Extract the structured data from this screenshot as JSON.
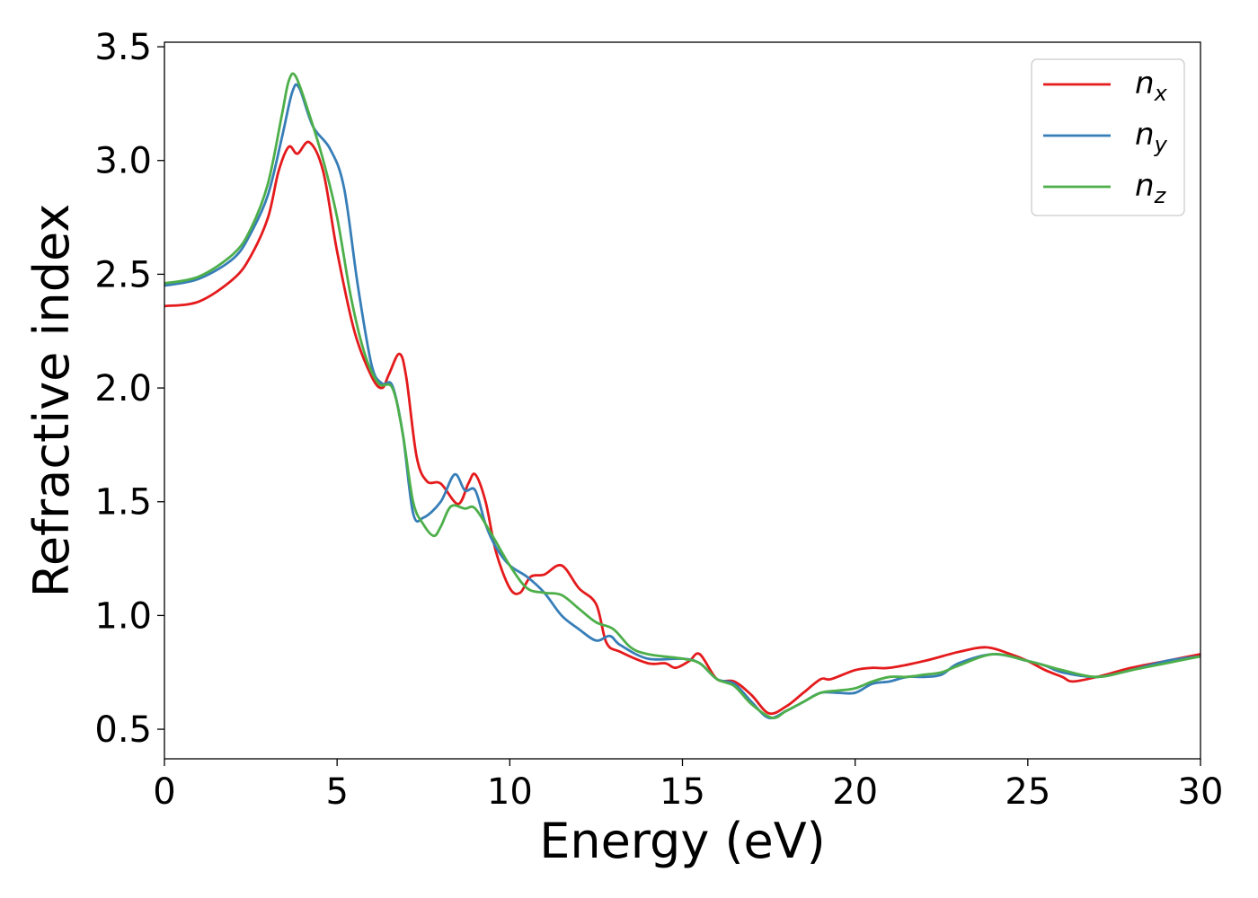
{
  "chart_data": {
    "type": "line",
    "title": "",
    "xlabel": "Energy (eV)",
    "ylabel": "Refractive index",
    "xlim": [
      0,
      30
    ],
    "ylim": [
      0.37,
      3.52
    ],
    "xticks": [
      0,
      5,
      10,
      15,
      20,
      25,
      30
    ],
    "xtick_labels": [
      "0",
      "5",
      "10",
      "15",
      "20",
      "25",
      "30"
    ],
    "yticks": [
      0.5,
      1.0,
      1.5,
      2.0,
      2.5,
      3.0,
      3.5
    ],
    "ytick_labels": [
      "0.5",
      "1.0",
      "1.5",
      "2.0",
      "2.5",
      "3.0",
      "3.5"
    ],
    "grid": false,
    "legend_position": "top-right",
    "series": [
      {
        "name": "n_x",
        "label_base": "n",
        "label_sub": "x",
        "color": "#e41a1c",
        "x": [
          0,
          1,
          2,
          2.5,
          3,
          3.3,
          3.6,
          3.85,
          4.2,
          4.6,
          5,
          5.5,
          6,
          6.3,
          6.5,
          6.8,
          7,
          7.3,
          7.6,
          8,
          8.5,
          8.8,
          9,
          9.3,
          9.6,
          10,
          10.3,
          10.6,
          11,
          11.5,
          12,
          12.5,
          12.8,
          13.2,
          14,
          14.5,
          14.8,
          15.2,
          15.5,
          16,
          16.5,
          17,
          17.5,
          18,
          18.5,
          19,
          19.3,
          20,
          20.5,
          21,
          22,
          23,
          23.8,
          24.5,
          25,
          25.5,
          26,
          26.3,
          27,
          28,
          29,
          30
        ],
        "y": [
          2.36,
          2.38,
          2.48,
          2.58,
          2.75,
          2.95,
          3.06,
          3.03,
          3.08,
          2.95,
          2.6,
          2.25,
          2.05,
          2.0,
          2.06,
          2.15,
          2.05,
          1.7,
          1.59,
          1.58,
          1.49,
          1.58,
          1.62,
          1.5,
          1.28,
          1.12,
          1.1,
          1.17,
          1.18,
          1.22,
          1.12,
          1.05,
          0.88,
          0.84,
          0.79,
          0.79,
          0.77,
          0.8,
          0.83,
          0.72,
          0.71,
          0.65,
          0.57,
          0.6,
          0.66,
          0.72,
          0.72,
          0.76,
          0.77,
          0.77,
          0.8,
          0.84,
          0.86,
          0.83,
          0.8,
          0.76,
          0.73,
          0.71,
          0.73,
          0.77,
          0.8,
          0.83
        ]
      },
      {
        "name": "n_y",
        "label_base": "n",
        "label_sub": "y",
        "color": "#377eb8",
        "x": [
          0,
          1,
          2,
          2.5,
          3,
          3.4,
          3.7,
          3.9,
          4.3,
          4.8,
          5.2,
          5.6,
          6,
          6.3,
          6.6,
          6.9,
          7.2,
          7.5,
          8,
          8.4,
          8.7,
          9,
          9.3,
          9.6,
          10,
          10.5,
          11,
          11.5,
          12,
          12.5,
          12.9,
          13.2,
          14,
          15,
          15.5,
          16,
          16.5,
          17,
          17.5,
          18,
          18.5,
          19,
          19.5,
          20,
          20.5,
          21,
          21.5,
          22,
          22.5,
          23,
          24,
          25,
          25.5,
          26,
          27,
          28,
          29,
          30
        ],
        "y": [
          2.45,
          2.48,
          2.57,
          2.68,
          2.85,
          3.1,
          3.3,
          3.32,
          3.15,
          3.05,
          2.88,
          2.45,
          2.1,
          2.02,
          2.01,
          1.8,
          1.45,
          1.43,
          1.5,
          1.62,
          1.55,
          1.55,
          1.4,
          1.3,
          1.22,
          1.17,
          1.1,
          1.0,
          0.94,
          0.89,
          0.91,
          0.87,
          0.81,
          0.81,
          0.79,
          0.72,
          0.7,
          0.62,
          0.55,
          0.58,
          0.62,
          0.66,
          0.66,
          0.66,
          0.7,
          0.71,
          0.73,
          0.73,
          0.74,
          0.79,
          0.83,
          0.8,
          0.78,
          0.75,
          0.73,
          0.76,
          0.8,
          0.82
        ]
      },
      {
        "name": "n_z",
        "label_base": "n",
        "label_sub": "z",
        "color": "#4daf4a",
        "x": [
          0,
          1,
          2,
          2.5,
          3,
          3.4,
          3.6,
          3.8,
          4.2,
          4.6,
          5,
          5.4,
          5.8,
          6.2,
          6.6,
          6.9,
          7.2,
          7.5,
          7.8,
          8,
          8.3,
          8.7,
          9,
          9.5,
          10,
          10.5,
          11,
          11.5,
          12,
          12.5,
          13,
          13.5,
          14,
          15,
          15.5,
          16,
          16.5,
          17,
          17.6,
          18,
          18.5,
          19,
          19.5,
          20,
          20.5,
          21,
          21.5,
          22,
          22.5,
          23,
          24,
          25,
          25.5,
          26,
          27,
          28,
          29,
          30
        ],
        "y": [
          2.46,
          2.49,
          2.59,
          2.7,
          2.9,
          3.2,
          3.35,
          3.37,
          3.2,
          3.0,
          2.75,
          2.4,
          2.15,
          2.02,
          2.0,
          1.8,
          1.5,
          1.4,
          1.35,
          1.39,
          1.48,
          1.47,
          1.47,
          1.35,
          1.22,
          1.12,
          1.1,
          1.09,
          1.03,
          0.97,
          0.94,
          0.86,
          0.83,
          0.81,
          0.79,
          0.72,
          0.69,
          0.61,
          0.55,
          0.58,
          0.62,
          0.66,
          0.67,
          0.68,
          0.71,
          0.73,
          0.73,
          0.74,
          0.75,
          0.78,
          0.83,
          0.8,
          0.78,
          0.76,
          0.73,
          0.76,
          0.79,
          0.82
        ]
      }
    ]
  }
}
